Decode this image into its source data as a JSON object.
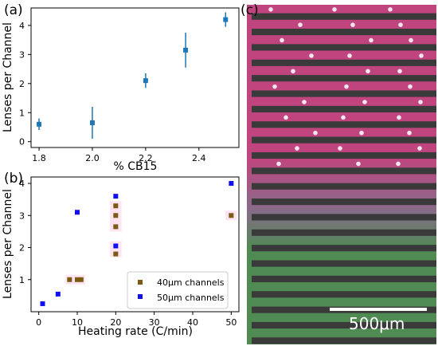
{
  "panels": {
    "a": {
      "label": "(a)"
    },
    "b": {
      "label": "(b)"
    },
    "c": {
      "label": "(c)"
    }
  },
  "chart_data": [
    {
      "type": "scatter",
      "xlabel": "% CB15",
      "ylabel": "Lenses per Channel",
      "xlim": [
        1.77,
        2.55
      ],
      "ylim": [
        -0.2,
        4.6
      ],
      "xticks": [
        "1.8",
        "2.0",
        "2.2",
        "2.4"
      ],
      "yticks": [
        "0",
        "1",
        "2",
        "3",
        "4"
      ],
      "grid": false,
      "series": [
        {
          "color": "#1f77b4",
          "points": [
            {
              "x": 1.8,
              "y": 0.6,
              "err": 0.2
            },
            {
              "x": 2.0,
              "y": 0.65,
              "err": 0.55
            },
            {
              "x": 2.2,
              "y": 2.1,
              "err": 0.25
            },
            {
              "x": 2.35,
              "y": 3.15,
              "err": 0.6
            },
            {
              "x": 2.5,
              "y": 4.2,
              "err": 0.25
            }
          ]
        }
      ]
    },
    {
      "type": "scatter",
      "xlabel": "Heating rate (C/min)",
      "ylabel": "Lenses per Channel",
      "xlim": [
        -2,
        52
      ],
      "ylim": [
        0.0,
        4.2
      ],
      "xticks": [
        "0",
        "10",
        "20",
        "30",
        "40",
        "50"
      ],
      "yticks": [
        "1",
        "2",
        "3",
        "4"
      ],
      "grid": false,
      "legend_position": "bottom-right",
      "highlight_color": "#fde4f0",
      "series": [
        {
          "name": "40μm channels",
          "color": "#7b5a12",
          "points": [
            {
              "x": 8,
              "y": 1.0
            },
            {
              "x": 10,
              "y": 1.0
            },
            {
              "x": 11,
              "y": 1.0
            },
            {
              "x": 20,
              "y": 1.8
            },
            {
              "x": 20,
              "y": 2.65
            },
            {
              "x": 20,
              "y": 3.0
            },
            {
              "x": 20,
              "y": 3.3
            },
            {
              "x": 50,
              "y": 3.0
            }
          ]
        },
        {
          "name": "50μm channels",
          "color": "#1010ee",
          "points": [
            {
              "x": 1,
              "y": 0.25
            },
            {
              "x": 5,
              "y": 0.55
            },
            {
              "x": 10,
              "y": 3.1
            },
            {
              "x": 20,
              "y": 2.05
            },
            {
              "x": 20,
              "y": 3.6
            },
            {
              "x": 50,
              "y": 4.0
            }
          ]
        }
      ]
    }
  ],
  "micrograph": {
    "scale_label": "500μm",
    "stripe_count": 22,
    "colors": [
      "#c0457e",
      "#8a6a8a",
      "#4f8b53"
    ]
  }
}
